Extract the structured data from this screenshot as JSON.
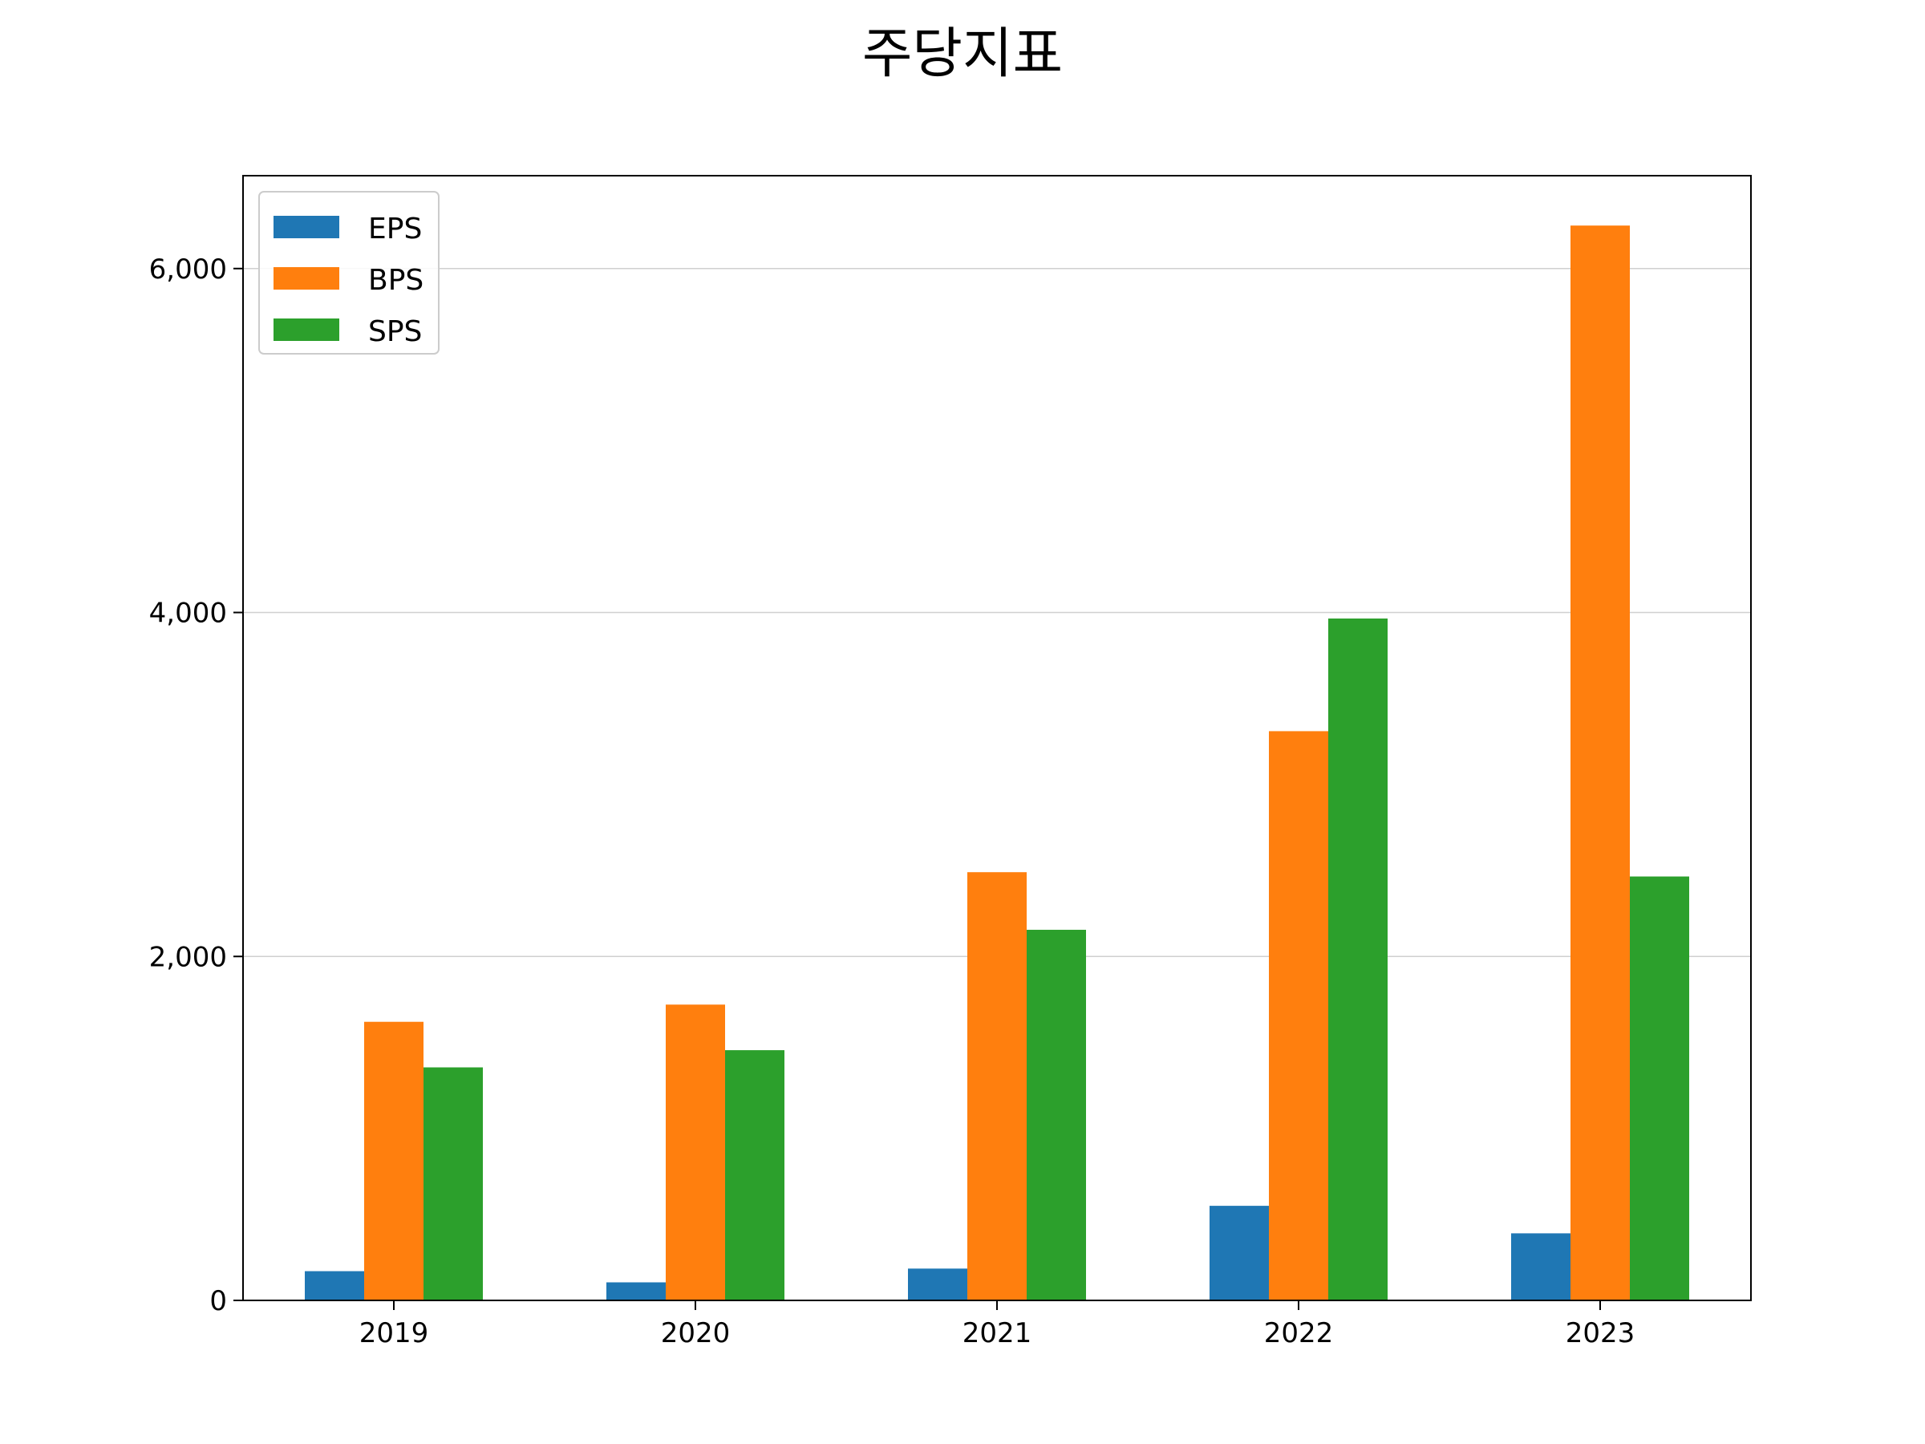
{
  "chart_data": {
    "type": "bar",
    "title": "주당지표",
    "xlabel": "",
    "ylabel": "",
    "categories": [
      "2019",
      "2020",
      "2021",
      "2022",
      "2023"
    ],
    "series": [
      {
        "name": "EPS",
        "color": "#1f77b4",
        "values": [
          170,
          105,
          185,
          550,
          390
        ]
      },
      {
        "name": "BPS",
        "color": "#ff7f0e",
        "values": [
          1620,
          1720,
          2490,
          3310,
          6250
        ]
      },
      {
        "name": "SPS",
        "color": "#2ca02c",
        "values": [
          1355,
          1455,
          2155,
          3965,
          2465
        ]
      }
    ],
    "ylim": [
      0,
      6540
    ],
    "yticks": [
      0,
      2000,
      4000,
      6000
    ],
    "ytick_labels": [
      "0",
      "2,000",
      "4,000",
      "6,000"
    ],
    "grid": "y",
    "legend_position": "top-left"
  }
}
